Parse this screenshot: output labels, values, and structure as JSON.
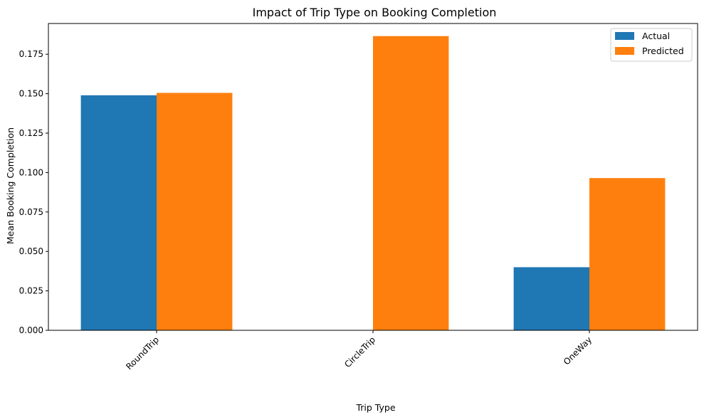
{
  "chart_data": {
    "type": "bar",
    "title": "Impact of Trip Type on Booking Completion",
    "xlabel": "Trip Type",
    "ylabel": "Mean Booking Completion",
    "categories": [
      "RoundTrip",
      "CircleTrip",
      "OneWay"
    ],
    "series": [
      {
        "name": "Actual",
        "color": "#1f77b4",
        "values": [
          0.149,
          0.0,
          0.04
        ]
      },
      {
        "name": "Predicted",
        "color": "#ff7f0e",
        "values": [
          0.1505,
          0.1865,
          0.0965
        ]
      }
    ],
    "ylim": [
      0,
      0.1945
    ],
    "yticks": [
      0.0,
      0.025,
      0.05,
      0.075,
      0.1,
      0.125,
      0.15,
      0.175
    ],
    "ytick_labels": [
      "0.000",
      "0.025",
      "0.050",
      "0.075",
      "0.100",
      "0.125",
      "0.150",
      "0.175"
    ],
    "xtick_rotation": 45,
    "grid": false,
    "legend_position": "top-right"
  }
}
